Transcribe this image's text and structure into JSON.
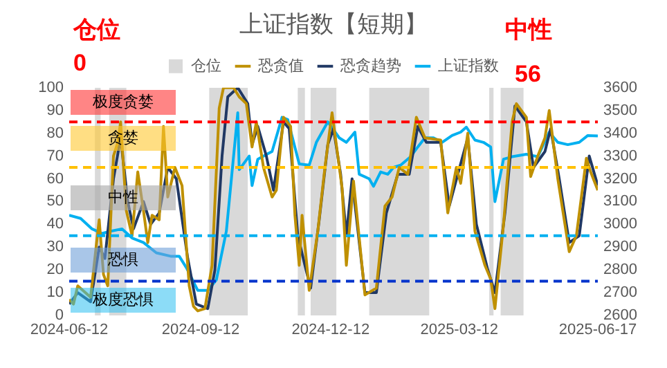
{
  "chart_data": {
    "type": "line",
    "title": "上证指数【短期】",
    "xlim": [
      "2024-06-12",
      "2025-06-17"
    ],
    "xticks": [
      "2024-06-12",
      "2024-09-12",
      "2024-12-12",
      "2025-03-12",
      "2025-06-17"
    ],
    "ylim": [
      0,
      100
    ],
    "yticks": [
      0,
      10,
      20,
      30,
      40,
      50,
      60,
      70,
      80,
      90,
      100
    ],
    "y2lim": [
      2600,
      3600
    ],
    "y2ticks": [
      2600,
      2700,
      2800,
      2900,
      3000,
      3100,
      3200,
      3300,
      3400,
      3500,
      3600
    ],
    "grid": false,
    "legend": "top",
    "marker": "none",
    "series": [
      {
        "name": "仓位",
        "type": "area",
        "color": "#d9d9d9",
        "x": [
          "2024-06-12",
          "2024-06-30",
          "2024-06-30",
          "2024-07-04",
          "2024-07-04",
          "2024-07-10",
          "2024-07-10",
          "2024-07-22",
          "2024-07-22",
          "2024-09-18",
          "2024-09-18",
          "2024-10-15",
          "2024-10-15",
          "2024-11-19",
          "2024-11-19",
          "2024-11-24",
          "2024-11-24",
          "2024-11-28",
          "2024-11-28",
          "2024-12-16",
          "2024-12-16",
          "2025-01-08",
          "2025-01-08",
          "2025-02-19",
          "2025-02-19",
          "2025-04-02",
          "2025-04-02",
          "2025-04-05",
          "2025-04-05",
          "2025-04-10",
          "2025-04-10",
          "2025-04-26",
          "2025-04-26",
          "2025-06-17"
        ],
        "values": [
          0,
          0,
          100,
          100,
          0,
          0,
          100,
          100,
          0,
          0,
          100,
          100,
          0,
          0,
          100,
          100,
          0,
          0,
          100,
          100,
          0,
          0,
          100,
          100,
          0,
          0,
          100,
          100,
          0,
          0,
          100,
          100,
          0,
          0
        ]
      },
      {
        "name": "恐贪值",
        "color": "#bf9000",
        "x": [
          "2024-06-12",
          "2024-06-15",
          "2024-06-18",
          "2024-06-27",
          "2024-07-01",
          "2024-07-03",
          "2024-07-06",
          "2024-07-09",
          "2024-07-13",
          "2024-07-16",
          "2024-07-18",
          "2024-07-22",
          "2024-07-26",
          "2024-07-30",
          "2024-08-03",
          "2024-08-06",
          "2024-08-09",
          "2024-08-14",
          "2024-08-17",
          "2024-08-20",
          "2024-08-25",
          "2024-08-30",
          "2024-09-04",
          "2024-09-07",
          "2024-09-10",
          "2024-09-15",
          "2024-09-20",
          "2024-09-25",
          "2024-09-28",
          "2024-10-05",
          "2024-10-09",
          "2024-10-14",
          "2024-10-18",
          "2024-10-21",
          "2024-10-26",
          "2024-11-01",
          "2024-11-04",
          "2024-11-09",
          "2024-11-14",
          "2024-11-17",
          "2024-11-20",
          "2024-11-22",
          "2024-11-27",
          "2024-12-03",
          "2024-12-08",
          "2024-12-13",
          "2024-12-20",
          "2024-12-23",
          "2024-12-28",
          "2025-01-05",
          "2025-01-13",
          "2025-01-19",
          "2025-01-24",
          "2025-01-29",
          "2025-02-04",
          "2025-02-10",
          "2025-02-16",
          "2025-02-27",
          "2025-03-04",
          "2025-03-10",
          "2025-03-13",
          "2025-03-18",
          "2025-03-23",
          "2025-03-30",
          "2025-04-03",
          "2025-04-06",
          "2025-04-12",
          "2025-04-18",
          "2025-04-21",
          "2025-04-28",
          "2025-05-01",
          "2025-05-06",
          "2025-05-11",
          "2025-05-14",
          "2025-05-20",
          "2025-05-28",
          "2025-06-02",
          "2025-06-09",
          "2025-06-12",
          "2025-06-17"
        ],
        "values": [
          7,
          5,
          13,
          8,
          31,
          42,
          18,
          13,
          70,
          76,
          85,
          46,
          35,
          63,
          46,
          32,
          44,
          42,
          83,
          52,
          65,
          57,
          13,
          4,
          2,
          3,
          22,
          91,
          100,
          100,
          96,
          93,
          74,
          85,
          65,
          52,
          55,
          87,
          83,
          44,
          22,
          44,
          11,
          37,
          65,
          89,
          56,
          22,
          59,
          9,
          12,
          48,
          52,
          65,
          62,
          87,
          78,
          77,
          45,
          65,
          58,
          80,
          37,
          22,
          16,
          3,
          40,
          85,
          93,
          87,
          61,
          70,
          78,
          90,
          60,
          28,
          35,
          69,
          63,
          55
        ]
      },
      {
        "name": "恐贪趋势",
        "color": "#203864",
        "x": [
          "2024-06-12",
          "2024-06-18",
          "2024-06-27",
          "2024-07-03",
          "2024-07-07",
          "2024-07-13",
          "2024-07-18",
          "2024-07-23",
          "2024-07-27",
          "2024-08-03",
          "2024-08-08",
          "2024-08-14",
          "2024-08-20",
          "2024-08-26",
          "2024-09-03",
          "2024-09-09",
          "2024-09-17",
          "2024-09-22",
          "2024-09-27",
          "2024-10-01",
          "2024-10-08",
          "2024-10-15",
          "2024-10-18",
          "2024-10-22",
          "2024-10-28",
          "2024-11-02",
          "2024-11-09",
          "2024-11-13",
          "2024-11-19",
          "2024-11-24",
          "2024-11-28",
          "2024-12-04",
          "2024-12-10",
          "2024-12-14",
          "2024-12-19",
          "2024-12-23",
          "2024-12-27",
          "2025-01-05",
          "2025-01-13",
          "2025-01-20",
          "2025-01-28",
          "2025-02-05",
          "2025-02-11",
          "2025-02-17",
          "2025-02-27",
          "2025-03-05",
          "2025-03-11",
          "2025-03-18",
          "2025-03-24",
          "2025-04-01",
          "2025-04-06",
          "2025-04-13",
          "2025-04-20",
          "2025-04-28",
          "2025-05-03",
          "2025-05-11",
          "2025-05-15",
          "2025-05-21",
          "2025-05-28",
          "2025-06-04",
          "2025-06-11",
          "2025-06-17"
        ],
        "values": [
          5,
          10,
          6,
          30,
          25,
          60,
          78,
          50,
          38,
          50,
          40,
          45,
          65,
          60,
          25,
          5,
          3,
          20,
          70,
          96,
          100,
          93,
          75,
          83,
          70,
          55,
          85,
          82,
          35,
          22,
          12,
          42,
          75,
          82,
          62,
          35,
          60,
          10,
          10,
          45,
          62,
          62,
          83,
          76,
          76,
          48,
          62,
          78,
          40,
          20,
          10,
          45,
          92,
          85,
          65,
          72,
          82,
          60,
          32,
          35,
          70,
          57
        ]
      },
      {
        "name": "上证指数",
        "axis": "y2",
        "color": "#00b0f0",
        "x": [
          "2024-06-12",
          "2024-06-20",
          "2024-06-28",
          "2024-07-05",
          "2024-07-11",
          "2024-07-19",
          "2024-07-26",
          "2024-08-03",
          "2024-08-12",
          "2024-08-22",
          "2024-08-28",
          "2024-09-02",
          "2024-09-10",
          "2024-09-17",
          "2024-09-23",
          "2024-09-30",
          "2024-10-08",
          "2024-10-09",
          "2024-10-16",
          "2024-10-18",
          "2024-10-22",
          "2024-10-29",
          "2024-11-01",
          "2024-11-08",
          "2024-11-12",
          "2024-11-20",
          "2024-11-27",
          "2024-12-02",
          "2024-12-10",
          "2024-12-18",
          "2024-12-23",
          "2024-12-29",
          "2025-01-01",
          "2025-01-08",
          "2025-01-11",
          "2025-01-16",
          "2025-01-21",
          "2025-01-25",
          "2025-01-30",
          "2025-02-06",
          "2025-02-11",
          "2025-02-16",
          "2025-02-22",
          "2025-02-28",
          "2025-03-07",
          "2025-03-13",
          "2025-03-17",
          "2025-03-23",
          "2025-03-29",
          "2025-04-03",
          "2025-04-06",
          "2025-04-12",
          "2025-04-18",
          "2025-04-28",
          "2025-05-06",
          "2025-05-14",
          "2025-05-20",
          "2025-05-27",
          "2025-06-04",
          "2025-06-10",
          "2025-06-17"
        ],
        "values": [
          3040,
          3026,
          2980,
          2960,
          2970,
          2980,
          2940,
          2920,
          2875,
          2860,
          2860,
          2810,
          2710,
          2710,
          2756,
          2970,
          3490,
          3240,
          3300,
          3170,
          3286,
          3310,
          3320,
          3470,
          3460,
          3265,
          3260,
          3360,
          3450,
          3380,
          3360,
          3405,
          3220,
          3200,
          3167,
          3230,
          3220,
          3250,
          3260,
          3297,
          3340,
          3380,
          3380,
          3360,
          3390,
          3405,
          3427,
          3370,
          3360,
          3340,
          3100,
          3286,
          3297,
          3308,
          3297,
          3405,
          3360,
          3350,
          3360,
          3390,
          3388
        ]
      }
    ],
    "ref_lines": [
      {
        "axis": "y",
        "value": 85,
        "color": "#ff0000",
        "line_style": "dashed"
      },
      {
        "axis": "y",
        "value": 65,
        "color": "#ffc000",
        "line_style": "dashed"
      },
      {
        "axis": "y",
        "value": 35,
        "color": "#00b0f0",
        "line_style": "dashed"
      },
      {
        "axis": "y",
        "value": 15,
        "color": "#0033cc",
        "line_style": "dashed"
      }
    ],
    "annotations": [
      "仓位",
      "0",
      "中性",
      "56",
      {
        "text": "极度贪婪",
        "x": "2024-07-20",
        "y": 93.5
      },
      {
        "text": "贪婪",
        "x": "2024-07-20",
        "y": 77.5
      },
      {
        "text": "中性",
        "x": "2024-07-20",
        "y": 51.5
      },
      {
        "text": "恐惧",
        "x": "2024-07-20",
        "y": 24
      },
      {
        "text": "极度恐惧",
        "x": "2024-07-20",
        "y": 6.5
      }
    ]
  }
}
